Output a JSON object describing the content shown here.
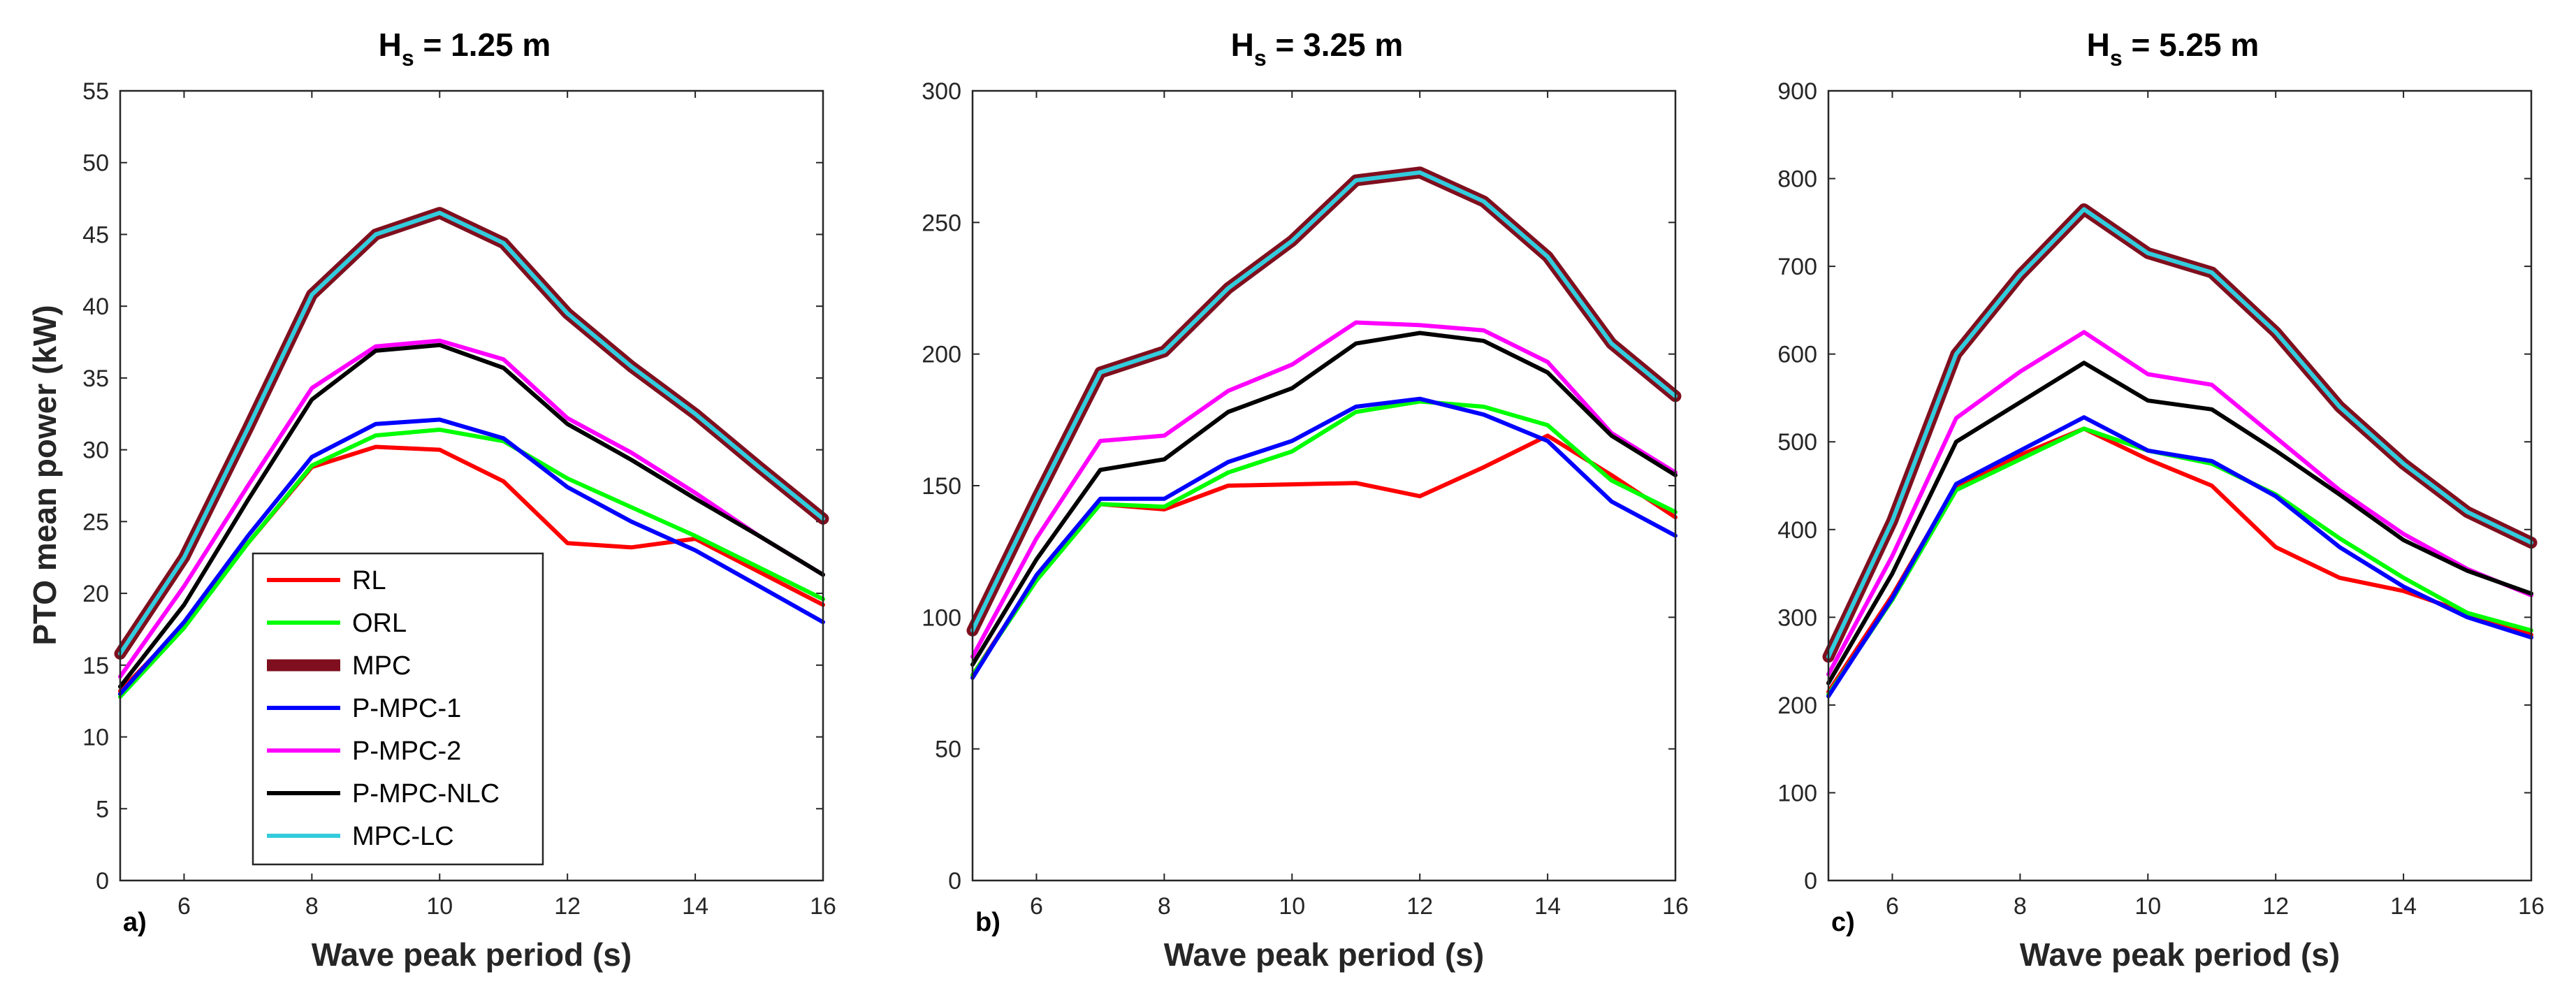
{
  "figure": {
    "ylabel": "PTO mean power (kW)",
    "xlabel": "Wave peak period (s)"
  },
  "legend": [
    {
      "name": "RL",
      "color": "#ff0000"
    },
    {
      "name": "ORL",
      "color": "#00ff00"
    },
    {
      "name": "MPC",
      "color": "#7f0f1e"
    },
    {
      "name": "P-MPC-1",
      "color": "#0000ff"
    },
    {
      "name": "P-MPC-2",
      "color": "#ff00ff"
    },
    {
      "name": "P-MPC-NLC",
      "color": "#000000"
    },
    {
      "name": "MPC-LC",
      "color": "#33ccdd"
    }
  ],
  "chart_data": [
    {
      "type": "line",
      "panel_label": "a)",
      "title_main": "H",
      "title_sub": "s",
      "title_rest": " = 1.25 m",
      "xlabel": "Wave peak period (s)",
      "ylabel": "PTO mean power (kW)",
      "xlim": [
        5,
        16
      ],
      "ylim": [
        0,
        55
      ],
      "xticks": [
        6,
        8,
        10,
        12,
        14,
        16
      ],
      "yticks": [
        0,
        5,
        10,
        15,
        20,
        25,
        30,
        35,
        40,
        45,
        50,
        55
      ],
      "x": [
        5,
        6,
        7,
        8,
        9,
        10,
        11,
        12,
        13,
        14,
        15,
        16
      ],
      "series": [
        {
          "name": "RL",
          "values": [
            13.2,
            17.8,
            23.5,
            28.8,
            30.2,
            30.0,
            27.8,
            23.5,
            23.2,
            23.8,
            21.5,
            19.2
          ]
        },
        {
          "name": "ORL",
          "values": [
            12.8,
            17.6,
            23.5,
            28.9,
            31.0,
            31.4,
            30.6,
            28.0,
            26.0,
            24.0,
            21.8,
            19.6
          ]
        },
        {
          "name": "MPC",
          "values": [
            15.8,
            22.5,
            31.5,
            40.8,
            45.0,
            46.5,
            44.4,
            39.5,
            35.8,
            32.5,
            28.8,
            25.2
          ]
        },
        {
          "name": "P-MPC-1",
          "values": [
            13.0,
            18.0,
            24.0,
            29.5,
            31.8,
            32.1,
            30.8,
            27.4,
            25.0,
            23.0,
            20.5,
            18.0
          ]
        },
        {
          "name": "P-MPC-2",
          "values": [
            14.2,
            20.5,
            27.5,
            34.3,
            37.2,
            37.6,
            36.3,
            32.2,
            29.8,
            27.0,
            24.0,
            21.3
          ]
        },
        {
          "name": "P-MPC-NLC",
          "values": [
            13.5,
            19.2,
            26.5,
            33.5,
            36.9,
            37.3,
            35.7,
            31.8,
            29.3,
            26.6,
            24.0,
            21.3
          ]
        },
        {
          "name": "MPC-LC",
          "values": [
            15.8,
            22.5,
            31.5,
            40.8,
            45.0,
            46.5,
            44.4,
            39.5,
            35.8,
            32.5,
            28.8,
            25.2
          ]
        }
      ]
    },
    {
      "type": "line",
      "panel_label": "b)",
      "title_main": "H",
      "title_sub": "s",
      "title_rest": " = 3.25 m",
      "xlabel": "Wave peak period (s)",
      "ylabel": "",
      "xlim": [
        5,
        16
      ],
      "ylim": [
        0,
        300
      ],
      "xticks": [
        6,
        8,
        10,
        12,
        14,
        16
      ],
      "yticks": [
        0,
        50,
        100,
        150,
        200,
        250,
        300
      ],
      "x": [
        5,
        6,
        7,
        8,
        9,
        10,
        11,
        12,
        13,
        14,
        15,
        16
      ],
      "series": [
        {
          "name": "RL",
          "values": [
            78,
            115,
            143,
            141,
            150,
            150.5,
            151,
            146,
            157,
            169,
            154,
            138
          ]
        },
        {
          "name": "ORL",
          "values": [
            78,
            114,
            143,
            142,
            155,
            163,
            178,
            182,
            180,
            173,
            152,
            140
          ]
        },
        {
          "name": "MPC",
          "values": [
            95,
            145,
            193,
            201,
            225,
            243,
            266,
            269,
            258,
            237,
            204,
            184
          ]
        },
        {
          "name": "P-MPC-1",
          "values": [
            77,
            116,
            145,
            145,
            159,
            167,
            180,
            183,
            177,
            167,
            144,
            131
          ]
        },
        {
          "name": "P-MPC-2",
          "values": [
            85,
            130,
            167,
            169,
            186,
            196,
            212,
            211,
            209,
            197,
            170,
            155
          ]
        },
        {
          "name": "P-MPC-NLC",
          "values": [
            82,
            122,
            156,
            160,
            178,
            187,
            204,
            208,
            205,
            193,
            169,
            154
          ]
        },
        {
          "name": "MPC-LC",
          "values": [
            95,
            145,
            193,
            201,
            225,
            243,
            266,
            269,
            258,
            237,
            204,
            184
          ]
        }
      ]
    },
    {
      "type": "line",
      "panel_label": "c)",
      "title_main": "H",
      "title_sub": "s",
      "title_rest": " = 5.25 m",
      "xlabel": "Wave peak period (s)",
      "ylabel": "",
      "xlim": [
        5,
        16
      ],
      "ylim": [
        0,
        900
      ],
      "xticks": [
        6,
        8,
        10,
        12,
        14,
        16
      ],
      "yticks": [
        0,
        100,
        200,
        300,
        400,
        500,
        600,
        700,
        800,
        900
      ],
      "x": [
        5,
        6,
        7,
        8,
        9,
        10,
        11,
        12,
        13,
        14,
        15,
        16
      ],
      "series": [
        {
          "name": "RL",
          "values": [
            215,
            325,
            450,
            485,
            515,
            480,
            450,
            380,
            345,
            330,
            305,
            280
          ]
        },
        {
          "name": "ORL",
          "values": [
            212,
            320,
            445,
            480,
            515,
            490,
            475,
            440,
            390,
            345,
            305,
            285
          ]
        },
        {
          "name": "MPC",
          "values": [
            255,
            410,
            600,
            690,
            765,
            715,
            693,
            625,
            540,
            475,
            420,
            385
          ]
        },
        {
          "name": "P-MPC-1",
          "values": [
            210,
            322,
            452,
            490,
            528,
            490,
            478,
            438,
            380,
            335,
            300,
            277
          ]
        },
        {
          "name": "P-MPC-2",
          "values": [
            235,
            370,
            527,
            580,
            625,
            577,
            565,
            505,
            445,
            395,
            355,
            325
          ]
        },
        {
          "name": "P-MPC-NLC",
          "values": [
            225,
            350,
            500,
            545,
            590,
            547,
            537,
            490,
            440,
            388,
            353,
            327
          ]
        },
        {
          "name": "MPC-LC",
          "values": [
            255,
            410,
            600,
            690,
            765,
            715,
            693,
            625,
            540,
            475,
            420,
            385
          ]
        }
      ]
    }
  ]
}
